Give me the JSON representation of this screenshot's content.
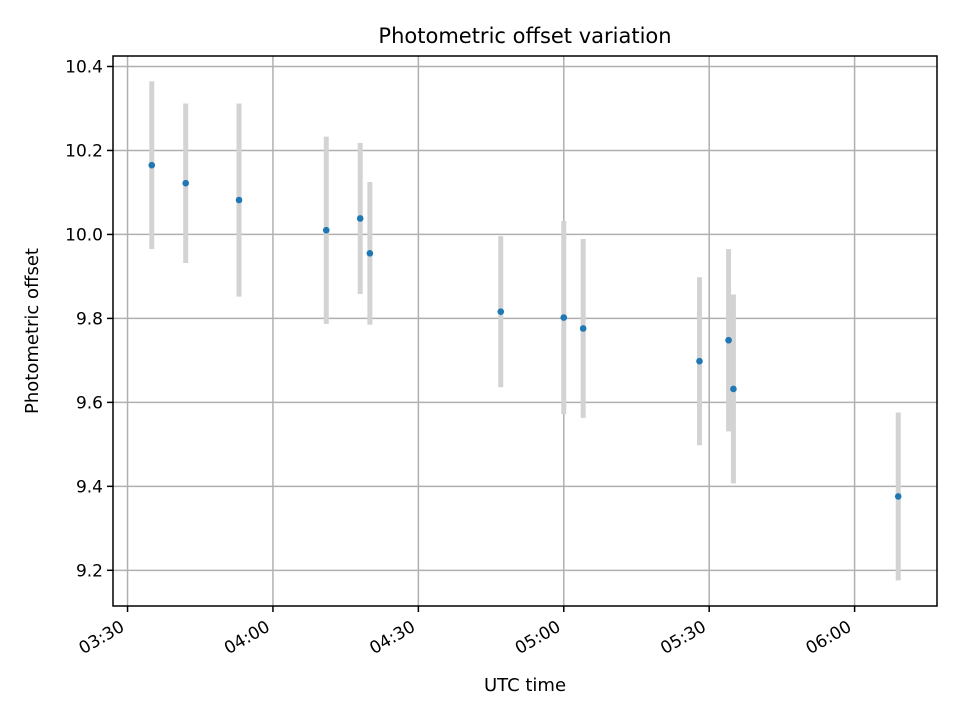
{
  "chart_data": {
    "type": "scatter",
    "title": "Photometric offset variation",
    "xlabel": "UTC time",
    "ylabel": "Photometric offset",
    "x_ticks": [
      "03:30",
      "04:00",
      "04:30",
      "05:00",
      "05:30",
      "06:00"
    ],
    "y_ticks": [
      "9.2",
      "9.4",
      "9.6",
      "9.8",
      "10.0",
      "10.2",
      "10.4"
    ],
    "x_range": [
      "03:27",
      "06:17"
    ],
    "y_range": [
      9.115,
      10.425
    ],
    "grid": true,
    "colors": {
      "point": "#1f77b4",
      "errorbar": "#d3d3d3",
      "grid": "#b0b0b0"
    },
    "points": [
      {
        "x": "03:35",
        "y": 10.165,
        "err": 0.2
      },
      {
        "x": "03:42",
        "y": 10.122,
        "err": 0.19
      },
      {
        "x": "03:53",
        "y": 10.082,
        "err": 0.23
      },
      {
        "x": "04:11",
        "y": 10.01,
        "err": 0.223
      },
      {
        "x": "04:18",
        "y": 10.038,
        "err": 0.18
      },
      {
        "x": "04:20",
        "y": 9.955,
        "err": 0.17
      },
      {
        "x": "04:47",
        "y": 9.816,
        "err": 0.18
      },
      {
        "x": "05:00",
        "y": 9.802,
        "err": 0.23
      },
      {
        "x": "05:04",
        "y": 9.776,
        "err": 0.213
      },
      {
        "x": "05:28",
        "y": 9.698,
        "err": 0.2
      },
      {
        "x": "05:34",
        "y": 9.748,
        "err": 0.217
      },
      {
        "x": "05:35",
        "y": 9.632,
        "err": 0.225
      },
      {
        "x": "06:09",
        "y": 9.376,
        "err": 0.2
      }
    ]
  }
}
